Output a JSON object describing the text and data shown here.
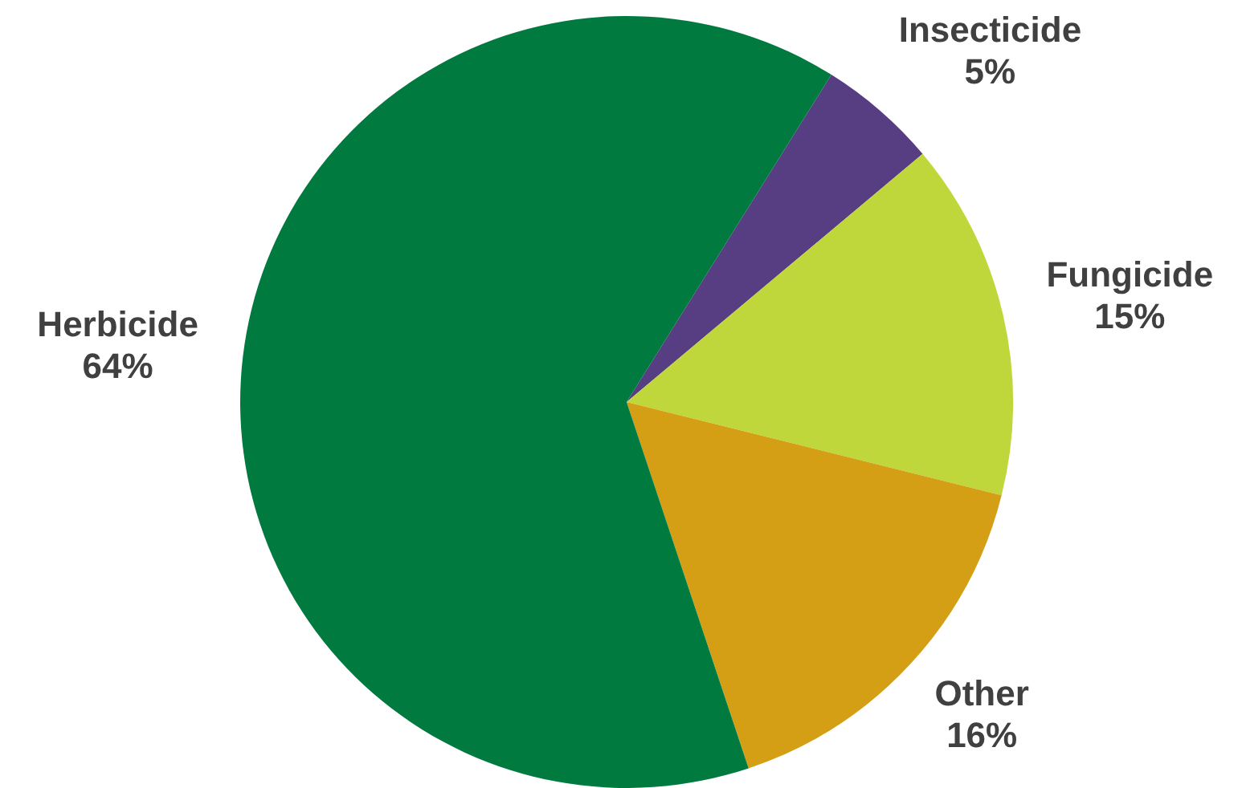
{
  "chart_data": {
    "type": "pie",
    "categories": [
      "Insecticide",
      "Fungicide",
      "Other",
      "Herbicide"
    ],
    "values": [
      5,
      15,
      16,
      64
    ],
    "colors": [
      "#573d82",
      "#bfd73a",
      "#d49f14",
      "#007a3e"
    ],
    "value_labels": [
      "5%",
      "15%",
      "16%",
      "64%"
    ],
    "legend": false
  }
}
